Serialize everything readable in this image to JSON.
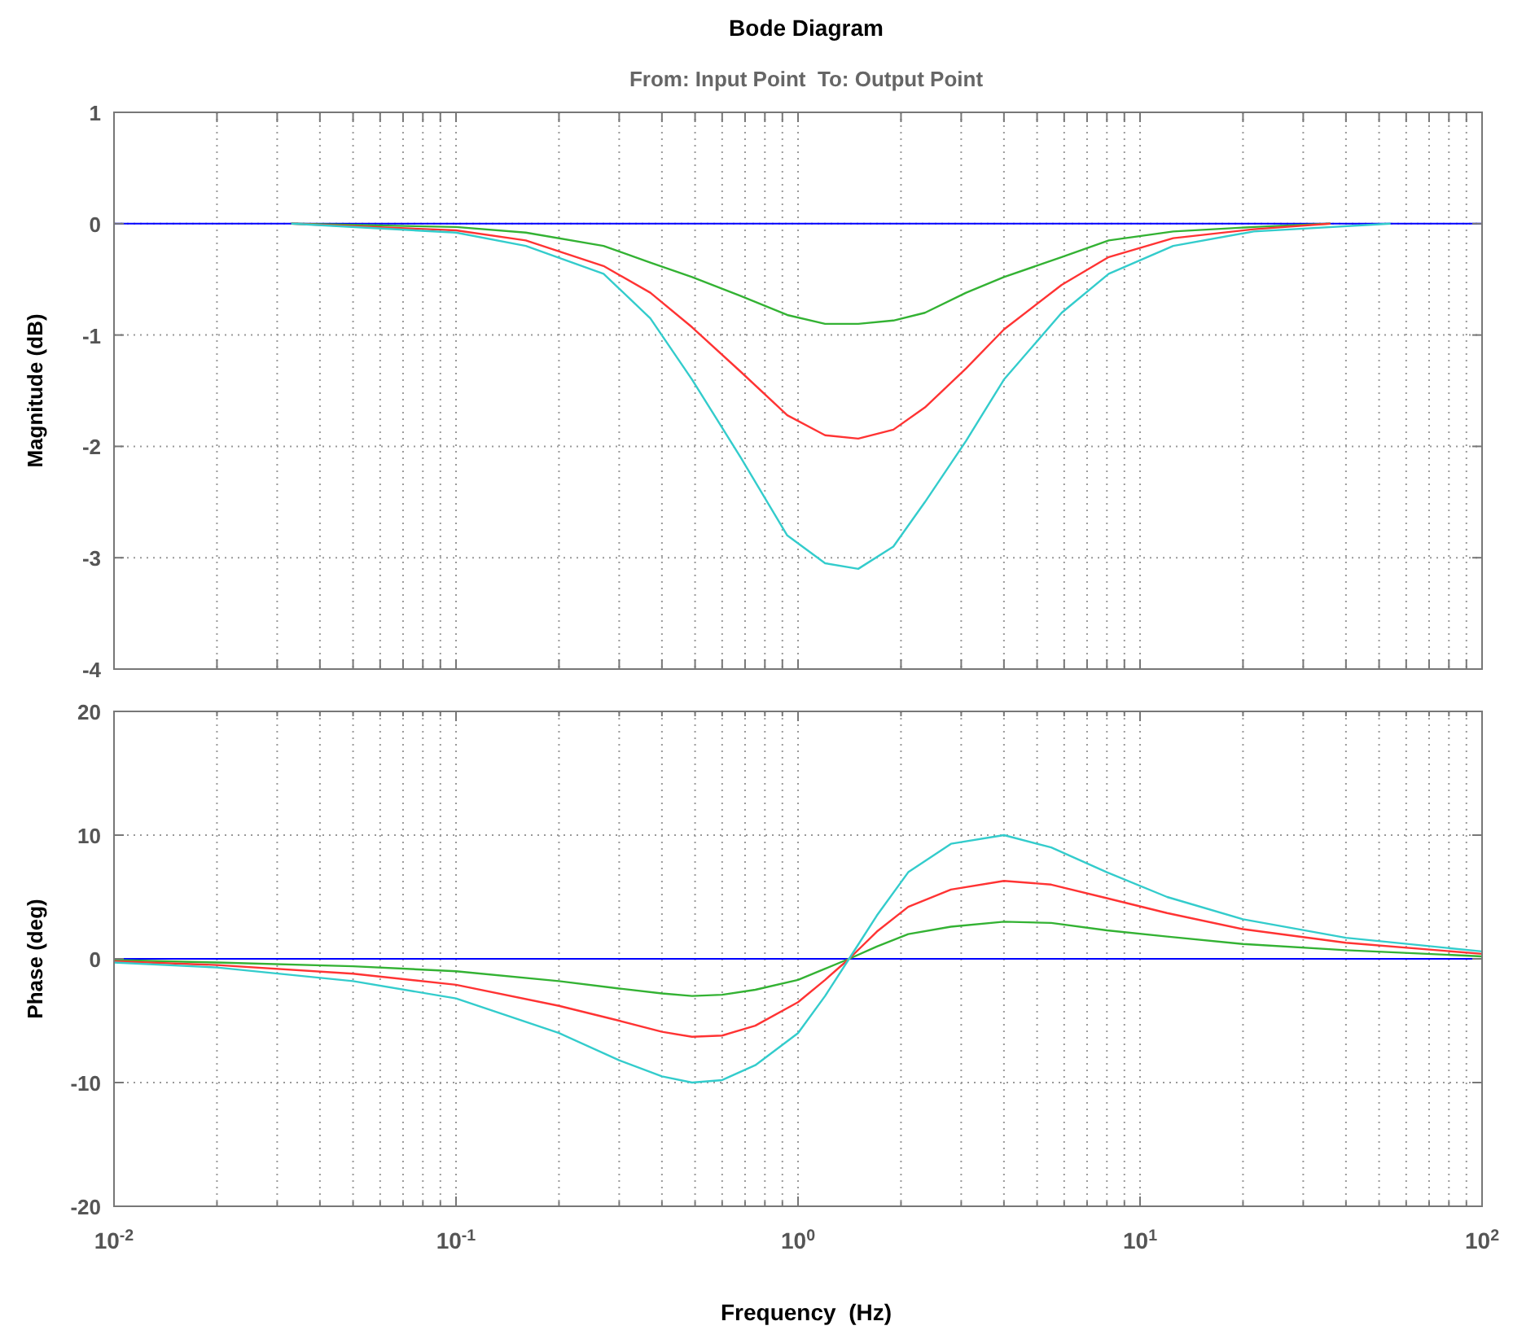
{
  "chart_data": [
    {
      "type": "line",
      "title": "Bode Diagram",
      "subtitle": "From: Input Point  To: Output Point",
      "ylabel": "Magnitude (dB)",
      "log": "x",
      "grid": true,
      "tick_labels": "y",
      "line_style": "solid",
      "marker": "none",
      "x": [
        0.033,
        0.1,
        0.16,
        0.27,
        0.37,
        0.49,
        0.68,
        0.93,
        1.2,
        1.5,
        1.9,
        2.35,
        3.1,
        4.0,
        5.9,
        8.1,
        12.5,
        21.5,
        36
      ],
      "xlim": [
        0.01,
        100
      ],
      "xticks": [
        0.01,
        0.02,
        0.03,
        0.04,
        0.05,
        0.06,
        0.07,
        0.08,
        0.09,
        0.1,
        0.2,
        0.3,
        0.4,
        0.5,
        0.6,
        0.7,
        0.8,
        0.9,
        1,
        2,
        3,
        4,
        5,
        6,
        7,
        8,
        9,
        10,
        20,
        30,
        40,
        50,
        60,
        70,
        80,
        90,
        100
      ],
      "ylim": [
        -4,
        1
      ],
      "yticks": [
        -4,
        -3,
        -2,
        -1,
        0,
        1
      ],
      "ref_lines": [
        {
          "axis": "y",
          "value": 0,
          "color": "#0000ff"
        }
      ],
      "series": [
        {
          "color": "#33b233",
          "values": [
            0,
            -0.03,
            -0.08,
            -0.2,
            -0.35,
            -0.48,
            -0.65,
            -0.82,
            -0.9,
            -0.9,
            -0.87,
            -0.8,
            -0.62,
            -0.48,
            -0.3,
            -0.15,
            -0.07,
            -0.03,
            0
          ]
        },
        {
          "color": "#ff3333",
          "values": [
            0,
            -0.06,
            -0.15,
            -0.38,
            -0.62,
            -0.93,
            -1.33,
            -1.72,
            -1.9,
            -1.93,
            -1.85,
            -1.65,
            -1.3,
            -0.95,
            -0.55,
            -0.3,
            -0.13,
            -0.05,
            0
          ]
        },
        {
          "color": "#33cccc",
          "x": [
            0.033,
            0.1,
            0.16,
            0.27,
            0.37,
            0.49,
            0.68,
            0.93,
            1.2,
            1.5,
            1.9,
            2.35,
            3.1,
            4.0,
            5.9,
            8.1,
            12.5,
            21.5,
            54
          ],
          "values": [
            0,
            -0.08,
            -0.2,
            -0.45,
            -0.85,
            -1.4,
            -2.1,
            -2.8,
            -3.05,
            -3.1,
            -2.9,
            -2.5,
            -1.95,
            -1.4,
            -0.8,
            -0.45,
            -0.2,
            -0.07,
            0
          ]
        }
      ]
    },
    {
      "type": "line",
      "ylabel": "Phase (deg)",
      "xlabel": "Frequency  (Hz)",
      "log": "x",
      "grid": true,
      "line_style": "solid",
      "marker": "none",
      "x": [
        0.01,
        0.02,
        0.05,
        0.1,
        0.2,
        0.3,
        0.4,
        0.49,
        0.6,
        0.75,
        1.0,
        1.2,
        1.41,
        1.7,
        2.1,
        2.8,
        4.0,
        5.5,
        8,
        12,
        20,
        40,
        100
      ],
      "xlim": [
        0.01,
        100
      ],
      "xticks": [
        {
          "value": 0.01,
          "label": "10$^{-2}$"
        },
        {
          "value": 0.02,
          "label": null
        },
        {
          "value": 0.03,
          "label": null
        },
        {
          "value": 0.04,
          "label": null
        },
        {
          "value": 0.05,
          "label": null
        },
        {
          "value": 0.06,
          "label": null
        },
        {
          "value": 0.07,
          "label": null
        },
        {
          "value": 0.08,
          "label": null
        },
        {
          "value": 0.09,
          "label": null
        },
        {
          "value": 0.1,
          "label": "10$^{-1}$"
        },
        {
          "value": 0.2,
          "label": null
        },
        {
          "value": 0.3,
          "label": null
        },
        {
          "value": 0.4,
          "label": null
        },
        {
          "value": 0.5,
          "label": null
        },
        {
          "value": 0.6,
          "label": null
        },
        {
          "value": 0.7,
          "label": null
        },
        {
          "value": 0.8,
          "label": null
        },
        {
          "value": 0.9,
          "label": null
        },
        {
          "value": 1,
          "label": "10$^{0}$"
        },
        {
          "value": 2,
          "label": null
        },
        {
          "value": 3,
          "label": null
        },
        {
          "value": 4,
          "label": null
        },
        {
          "value": 5,
          "label": null
        },
        {
          "value": 6,
          "label": null
        },
        {
          "value": 7,
          "label": null
        },
        {
          "value": 8,
          "label": null
        },
        {
          "value": 9,
          "label": null
        },
        {
          "value": 10,
          "label": "10$^{1}$"
        },
        {
          "value": 20,
          "label": null
        },
        {
          "value": 30,
          "label": null
        },
        {
          "value": 40,
          "label": null
        },
        {
          "value": 50,
          "label": null
        },
        {
          "value": 60,
          "label": null
        },
        {
          "value": 70,
          "label": null
        },
        {
          "value": 80,
          "label": null
        },
        {
          "value": 90,
          "label": null
        },
        {
          "value": 100,
          "label": "10$^{2}$"
        }
      ],
      "ylim": [
        -20,
        20
      ],
      "yticks": [
        -20,
        -10,
        0,
        10,
        20
      ],
      "ref_lines": [
        {
          "axis": "y",
          "value": 0,
          "color": "#0000ff"
        }
      ],
      "series": [
        {
          "color": "#33b233",
          "values": [
            -0.1,
            -0.3,
            -0.6,
            -1,
            -1.8,
            -2.4,
            -2.8,
            -3,
            -2.9,
            -2.5,
            -1.7,
            -0.8,
            0,
            1,
            2,
            2.6,
            3,
            2.9,
            2.3,
            1.8,
            1.2,
            0.7,
            0.2
          ]
        },
        {
          "color": "#ff3333",
          "values": [
            -0.2,
            -0.5,
            -1.2,
            -2.1,
            -3.8,
            -5,
            -5.9,
            -6.3,
            -6.2,
            -5.4,
            -3.5,
            -1.7,
            0,
            2.2,
            4.2,
            5.6,
            6.3,
            6,
            4.9,
            3.7,
            2.4,
            1.3,
            0.4
          ]
        },
        {
          "color": "#33cccc",
          "values": [
            -0.3,
            -0.7,
            -1.8,
            -3.2,
            -6,
            -8.2,
            -9.5,
            -10,
            -9.8,
            -8.6,
            -6,
            -3,
            0,
            3.5,
            7,
            9.3,
            10,
            9,
            7,
            5,
            3.2,
            1.7,
            0.6
          ]
        }
      ]
    }
  ]
}
